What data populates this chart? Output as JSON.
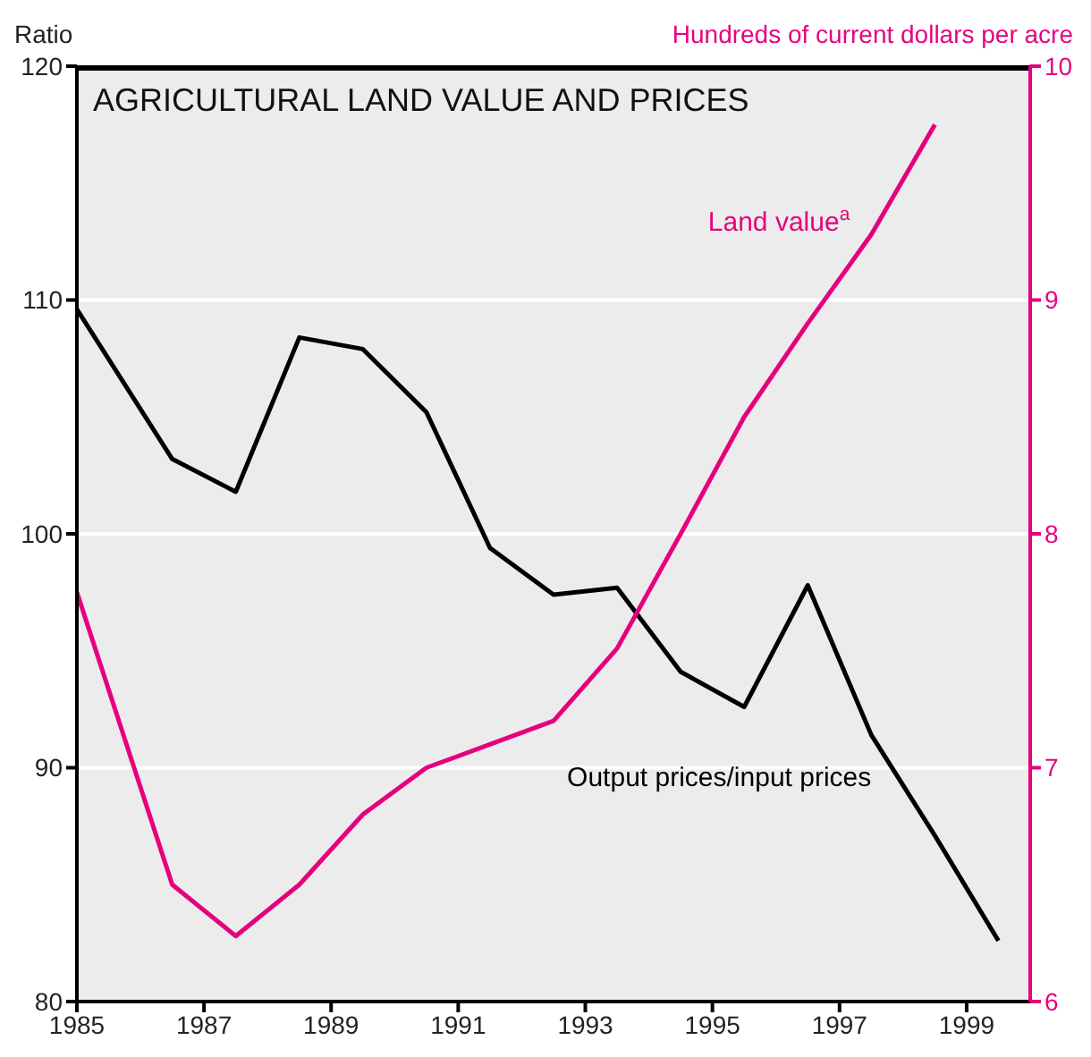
{
  "chart_data": {
    "type": "line",
    "title": "AGRICULTURAL LAND VALUE AND PRICES",
    "ylabel": "Ratio",
    "y2label": "Hundreds of current dollars per acre",
    "series": [
      {
        "name": "Output prices/input prices",
        "color": "#000000",
        "x": [
          1985,
          1986.5,
          1987.5,
          1988.5,
          1989.5,
          1990.5,
          1991.5,
          1992.5,
          1993.5,
          1994.5,
          1995.5,
          1996.5,
          1997.5,
          1998.5,
          1999.5
        ],
        "values": [
          109.6,
          103.2,
          101.8,
          108.4,
          107.9,
          105.2,
          99.4,
          97.4,
          97.7,
          94.1,
          92.6,
          97.8,
          91.4,
          87.1,
          82.6
        ]
      },
      {
        "name": "Land value$^{a}$",
        "color": "#e6007e",
        "axis": "y2",
        "x": [
          1985,
          1986.5,
          1987.5,
          1988.5,
          1989.5,
          1990.5,
          1991.5,
          1992.5,
          1993.5,
          1994.5,
          1995.5,
          1996.5,
          1997.5,
          1998.5
        ],
        "values": [
          7.75,
          6.5,
          6.28,
          6.5,
          6.8,
          7.0,
          7.1,
          7.2,
          7.51,
          8.0,
          8.5,
          8.9,
          9.28,
          9.75
        ]
      }
    ],
    "xlim": [
      1985,
      2000
    ],
    "xticks": [
      1985,
      1987,
      1989,
      1991,
      1993,
      1995,
      1997,
      1999
    ],
    "ylim": [
      80,
      120
    ],
    "yticks": [
      80,
      90,
      100,
      110,
      120
    ],
    "y2lim": [
      6,
      10
    ],
    "y2ticks": [
      6,
      7,
      8,
      9,
      10
    ],
    "grid": "y",
    "marker": "none",
    "line_style": "solid"
  }
}
